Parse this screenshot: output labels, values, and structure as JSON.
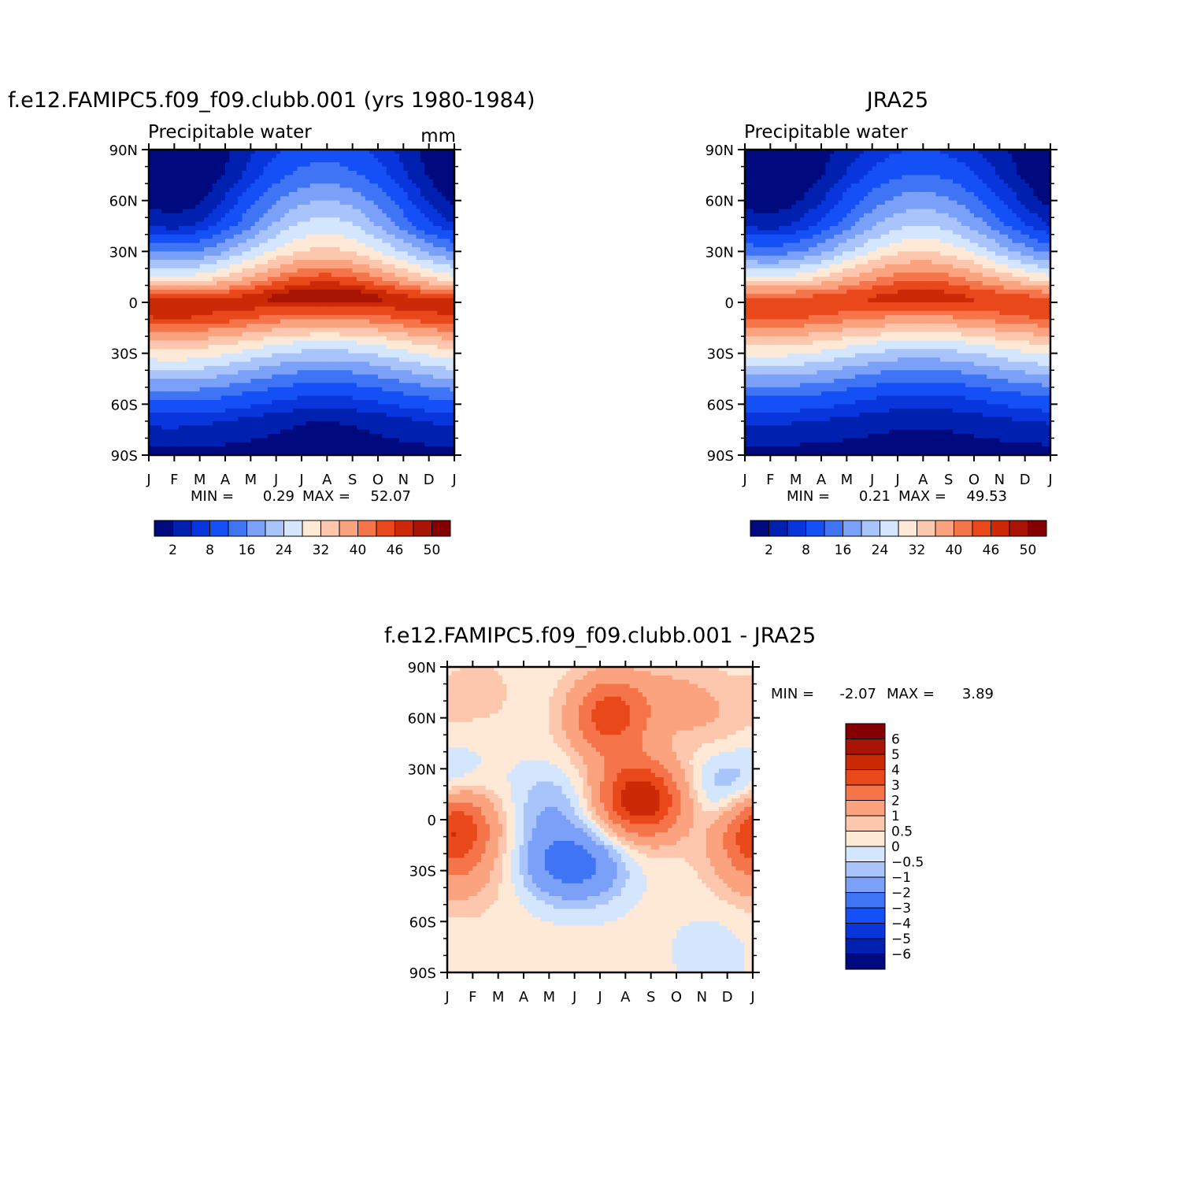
{
  "chart_data": [
    {
      "type": "heatmap",
      "title": "f.e12.FAMIPC5.f09_f09.clubb.001 (yrs 1980-1984)",
      "subtitle": "Precipitable water",
      "units": "mm",
      "x_ticks": [
        "J",
        "F",
        "M",
        "A",
        "M",
        "J",
        "J",
        "A",
        "S",
        "O",
        "N",
        "D",
        "J"
      ],
      "y_ticks": [
        "90N",
        "60N",
        "30N",
        "0",
        "30S",
        "60S",
        "90S"
      ],
      "ylim": [
        -90,
        90
      ],
      "stats": {
        "min_label": "MIN =",
        "min": "0.29",
        "max_label": "MAX =",
        "max": "52.07"
      },
      "colorbar": {
        "labels": [
          "2",
          "8",
          "16",
          "24",
          "32",
          "40",
          "46",
          "50"
        ],
        "colors": [
          "#000a7f",
          "#0020b0",
          "#0836dc",
          "#1450f5",
          "#3f74f5",
          "#7aa0f8",
          "#a9c4fb",
          "#d4e6fe",
          "#fde9d6",
          "#fcc7ac",
          "#fba37f",
          "#f6744a",
          "#e9491a",
          "#cc2a06",
          "#a81406",
          "#850000"
        ]
      },
      "season_peak_day": 210,
      "rows": [
        {
          "lat": 90,
          "base": 4.0,
          "amp": 6.0
        },
        {
          "lat": 75,
          "base": 6.0,
          "amp": 8.0
        },
        {
          "lat": 60,
          "base": 10.0,
          "amp": 10.0
        },
        {
          "lat": 45,
          "base": 15.0,
          "amp": 11.0
        },
        {
          "lat": 30,
          "base": 24.0,
          "amp": 9.0
        },
        {
          "lat": 15,
          "base": 36.0,
          "amp": 8.0
        },
        {
          "lat": 5,
          "base": 46.0,
          "amp": 4.0
        },
        {
          "lat": 0,
          "base": 48.0,
          "amp": 0.5
        },
        {
          "lat": -10,
          "base": 43.0,
          "amp": -3.0
        },
        {
          "lat": -25,
          "base": 30.0,
          "amp": -4.0
        },
        {
          "lat": -40,
          "base": 20.0,
          "amp": -4.0
        },
        {
          "lat": -55,
          "base": 11.0,
          "amp": -3.0
        },
        {
          "lat": -70,
          "base": 4.0,
          "amp": -2.0
        },
        {
          "lat": -90,
          "base": 0.5,
          "amp": -0.3
        }
      ]
    },
    {
      "type": "heatmap",
      "title": "JRA25",
      "subtitle": "Precipitable water",
      "x_ticks": [
        "J",
        "F",
        "M",
        "A",
        "M",
        "J",
        "J",
        "A",
        "S",
        "O",
        "N",
        "D",
        "J"
      ],
      "y_ticks": [
        "90N",
        "60N",
        "30N",
        "0",
        "30S",
        "60S",
        "90S"
      ],
      "ylim": [
        -90,
        90
      ],
      "stats": {
        "min_label": "MIN =",
        "min": "0.21",
        "max_label": "MAX =",
        "max": "49.53"
      },
      "colorbar": {
        "labels": [
          "2",
          "8",
          "16",
          "24",
          "32",
          "40",
          "46",
          "50"
        ],
        "colors": [
          "#000a7f",
          "#0020b0",
          "#0836dc",
          "#1450f5",
          "#3f74f5",
          "#7aa0f8",
          "#a9c4fb",
          "#d4e6fe",
          "#fde9d6",
          "#fcc7ac",
          "#fba37f",
          "#f6744a",
          "#e9491a",
          "#cc2a06",
          "#a81406",
          "#850000"
        ]
      },
      "season_peak_day": 210,
      "rows": [
        {
          "lat": 90,
          "base": 3.0,
          "amp": 5.0
        },
        {
          "lat": 75,
          "base": 5.0,
          "amp": 7.0
        },
        {
          "lat": 60,
          "base": 9.0,
          "amp": 9.0
        },
        {
          "lat": 45,
          "base": 14.0,
          "amp": 10.0
        },
        {
          "lat": 30,
          "base": 23.0,
          "amp": 9.0
        },
        {
          "lat": 15,
          "base": 35.0,
          "amp": 7.0
        },
        {
          "lat": 5,
          "base": 44.0,
          "amp": 3.0
        },
        {
          "lat": 0,
          "base": 46.0,
          "amp": 0.5
        },
        {
          "lat": -10,
          "base": 41.0,
          "amp": -2.5
        },
        {
          "lat": -25,
          "base": 29.0,
          "amp": -3.5
        },
        {
          "lat": -40,
          "base": 19.0,
          "amp": -3.5
        },
        {
          "lat": -55,
          "base": 10.0,
          "amp": -2.5
        },
        {
          "lat": -70,
          "base": 4.0,
          "amp": -1.5
        },
        {
          "lat": -90,
          "base": 0.4,
          "amp": -0.2
        }
      ]
    },
    {
      "type": "heatmap",
      "title": "f.e12.FAMIPC5.f09_f09.clubb.001 - JRA25",
      "x_ticks": [
        "J",
        "F",
        "M",
        "A",
        "M",
        "J",
        "J",
        "A",
        "S",
        "O",
        "N",
        "D",
        "J"
      ],
      "y_ticks": [
        "90N",
        "60N",
        "30N",
        "0",
        "30S",
        "60S",
        "90S"
      ],
      "ylim": [
        -90,
        90
      ],
      "stats": {
        "min_label": "MIN =",
        "min": "-2.07",
        "max_label": "MAX =",
        "max": "3.89"
      },
      "colorbar": {
        "labels": [
          "6",
          "5",
          "4",
          "3",
          "2",
          "1",
          "0.5",
          "0",
          "-0.5",
          "-1",
          "-2",
          "-3",
          "-4",
          "-5",
          "-6"
        ],
        "colors": [
          "#850000",
          "#a81406",
          "#cc2a06",
          "#e9491a",
          "#f6744a",
          "#fba37f",
          "#fcc7ac",
          "#fde9d6",
          "#d4e6fe",
          "#a9c4fb",
          "#7aa0f8",
          "#3f74f5",
          "#1450f5",
          "#0836dc",
          "#0020b0",
          "#000a7f"
        ]
      },
      "background": 0.2,
      "anomalies": [
        {
          "month": 1.2,
          "lat": 75,
          "amp": 0.5
        },
        {
          "month": 6.5,
          "lat": 65,
          "amp": 2.3
        },
        {
          "month": 6.2,
          "lat": 55,
          "amp": 1.3
        },
        {
          "month": 9.0,
          "lat": 72,
          "amp": 0.8
        },
        {
          "month": 10.5,
          "lat": 60,
          "amp": 0.6
        },
        {
          "month": 7.3,
          "lat": 13,
          "amp": 3.4
        },
        {
          "month": 8.3,
          "lat": 10,
          "amp": 1.8
        },
        {
          "month": 0.5,
          "lat": -3,
          "amp": 2.5
        },
        {
          "month": 11.8,
          "lat": -3,
          "amp": 1.5
        },
        {
          "month": 4.3,
          "lat": -25,
          "amp": -2.0
        },
        {
          "month": 5.8,
          "lat": -28,
          "amp": -1.5
        },
        {
          "month": 4.0,
          "lat": 10,
          "amp": -1.0
        },
        {
          "month": 10.9,
          "lat": 15,
          "amp": -1.4
        },
        {
          "month": 0.4,
          "lat": 22,
          "amp": -0.6
        },
        {
          "month": 10.3,
          "lat": -78,
          "amp": -0.5
        },
        {
          "month": 0.8,
          "lat": -35,
          "amp": 0.7
        },
        {
          "month": 11.6,
          "lat": -25,
          "amp": 0.8
        }
      ]
    }
  ]
}
